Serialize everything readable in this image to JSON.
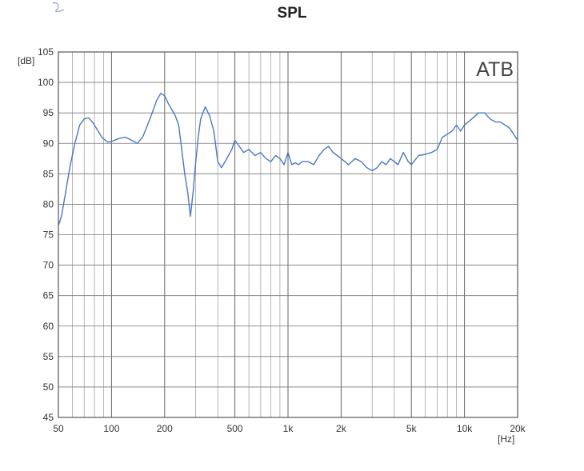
{
  "chart_data": {
    "type": "line",
    "title": "SPL",
    "ylabel": "[dB]",
    "xlabel": "[Hz]",
    "annotation": "ATB",
    "x_scale": "log",
    "xlim": [
      50,
      20000
    ],
    "ylim": [
      45,
      105
    ],
    "grid": true,
    "x_ticks": [
      {
        "value": 50,
        "label": "50"
      },
      {
        "value": 100,
        "label": "100"
      },
      {
        "value": 200,
        "label": "200"
      },
      {
        "value": 500,
        "label": "500"
      },
      {
        "value": 1000,
        "label": "1k"
      },
      {
        "value": 2000,
        "label": "2k"
      },
      {
        "value": 5000,
        "label": "5k"
      },
      {
        "value": 10000,
        "label": "10k"
      },
      {
        "value": 20000,
        "label": "20k"
      }
    ],
    "y_ticks": [
      45,
      50,
      55,
      60,
      65,
      70,
      75,
      80,
      85,
      90,
      95,
      100,
      105
    ],
    "line_color": "#4a78c2",
    "series": [
      {
        "x": [
          50,
          52,
          55,
          58,
          62,
          66,
          70,
          74,
          78,
          82,
          88,
          95,
          100,
          110,
          120,
          130,
          140,
          150,
          160,
          170,
          180,
          190,
          200,
          210,
          220,
          230,
          240,
          250,
          260,
          270,
          280,
          290,
          300,
          310,
          320,
          340,
          360,
          380,
          400,
          420,
          440,
          460,
          480,
          500,
          530,
          560,
          600,
          650,
          700,
          750,
          800,
          850,
          900,
          950,
          1000,
          1050,
          1100,
          1150,
          1200,
          1300,
          1400,
          1500,
          1600,
          1700,
          1800,
          1900,
          2000,
          2100,
          2200,
          2300,
          2400,
          2600,
          2800,
          3000,
          3200,
          3400,
          3600,
          3800,
          4000,
          4200,
          4500,
          4800,
          5000,
          5500,
          6000,
          6500,
          7000,
          7500,
          8000,
          8500,
          9000,
          9500,
          10000,
          11000,
          12000,
          13000,
          14000,
          15000,
          16000,
          17000,
          18000,
          19000,
          20000
        ],
        "y": [
          76.5,
          78,
          82,
          86,
          90,
          93,
          94,
          94.2,
          93.5,
          92.5,
          91,
          90.2,
          90.3,
          90.8,
          91,
          90.5,
          90,
          91,
          93,
          95,
          97,
          98.2,
          97.8,
          96.5,
          95.5,
          94.5,
          93,
          89,
          85,
          82,
          78,
          82,
          87,
          91,
          94,
          96,
          94.5,
          92,
          87,
          86,
          87,
          88,
          89,
          90.5,
          89.5,
          88.5,
          89,
          88,
          88.5,
          87.5,
          87,
          88,
          87.5,
          86.5,
          88.5,
          86.5,
          86.8,
          86.5,
          87,
          87,
          86.5,
          88,
          89,
          89.5,
          88.5,
          88,
          87.5,
          87,
          86.5,
          87,
          87.5,
          87,
          86,
          85.5,
          86,
          87,
          86.5,
          87.5,
          87,
          86.5,
          88.5,
          87,
          86.5,
          88,
          88.2,
          88.5,
          89,
          91,
          91.5,
          92,
          93,
          92,
          93,
          94,
          95,
          95,
          94,
          93.5,
          93.5,
          93,
          92.5,
          91.5,
          90.5
        ]
      }
    ]
  }
}
